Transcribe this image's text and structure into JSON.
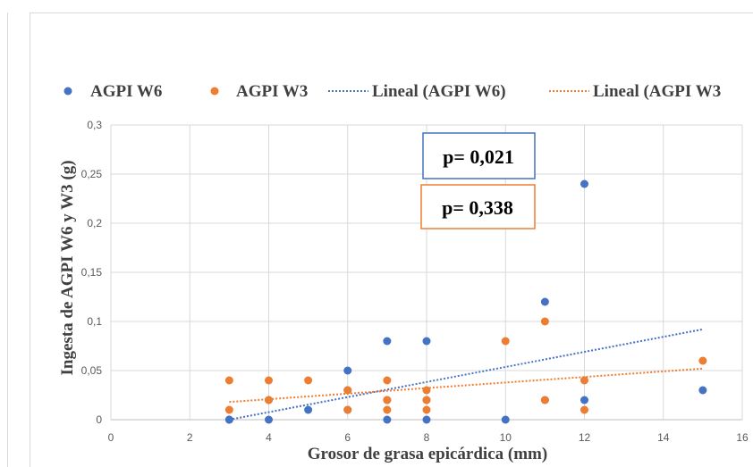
{
  "chart_data": {
    "type": "scatter",
    "xlabel": "Grosor de grasa epicárdica (mm)",
    "ylabel": "Ingesta de AGPI W6 y W3 (g)",
    "xlim": [
      0,
      16
    ],
    "ylim": [
      0,
      0.3
    ],
    "x_ticks": [
      "0",
      "2",
      "4",
      "6",
      "8",
      "10",
      "12",
      "14",
      "16"
    ],
    "y_ticks": [
      "0",
      "0,05",
      "0,1",
      "0,15",
      "0,2",
      "0,25",
      "0,3"
    ],
    "grid": true,
    "legend_position": "top",
    "legend": [
      "AGPI W6",
      "AGPI W3",
      "Lineal (AGPI W6)",
      "Lineal (AGPI W3"
    ],
    "series": [
      {
        "name": "AGPI W6",
        "color": "#4472c4",
        "points": [
          [
            3,
            0
          ],
          [
            3,
            0
          ],
          [
            4,
            0
          ],
          [
            4,
            0.02
          ],
          [
            5,
            0.01
          ],
          [
            6,
            0.05
          ],
          [
            6,
            0.03
          ],
          [
            6,
            0.01
          ],
          [
            7,
            0.08
          ],
          [
            7,
            0
          ],
          [
            7,
            0.02
          ],
          [
            8,
            0.08
          ],
          [
            8,
            0
          ],
          [
            8,
            0.02
          ],
          [
            10,
            0
          ],
          [
            11,
            0.12
          ],
          [
            11,
            0.02
          ],
          [
            12,
            0.24
          ],
          [
            12,
            0.02
          ],
          [
            15,
            0.03
          ]
        ]
      },
      {
        "name": "AGPI W3",
        "color": "#ed7d31",
        "points": [
          [
            3,
            0.04
          ],
          [
            3,
            0.01
          ],
          [
            4,
            0.04
          ],
          [
            4,
            0.02
          ],
          [
            5,
            0.04
          ],
          [
            6,
            0.03
          ],
          [
            6,
            0.01
          ],
          [
            7,
            0.04
          ],
          [
            7,
            0.02
          ],
          [
            7,
            0.01
          ],
          [
            8,
            0.03
          ],
          [
            8,
            0.02
          ],
          [
            8,
            0.01
          ],
          [
            10,
            0.08
          ],
          [
            11,
            0.1
          ],
          [
            11,
            0.02
          ],
          [
            12,
            0.04
          ],
          [
            12,
            0.01
          ],
          [
            15,
            0.06
          ]
        ]
      }
    ],
    "trendlines": [
      {
        "name": "Lineal (AGPI W6)",
        "color": "#4472c4",
        "x": [
          3,
          15
        ],
        "y": [
          0,
          0.092
        ]
      },
      {
        "name": "Lineal (AGPI W3",
        "color": "#ed7d31",
        "x": [
          3,
          15
        ],
        "y": [
          0.018,
          0.052
        ]
      }
    ],
    "annotations": [
      {
        "text": "p= 0,021",
        "border": "#4472c4"
      },
      {
        "text": "p= 0,338",
        "border": "#ed7d31"
      }
    ]
  }
}
